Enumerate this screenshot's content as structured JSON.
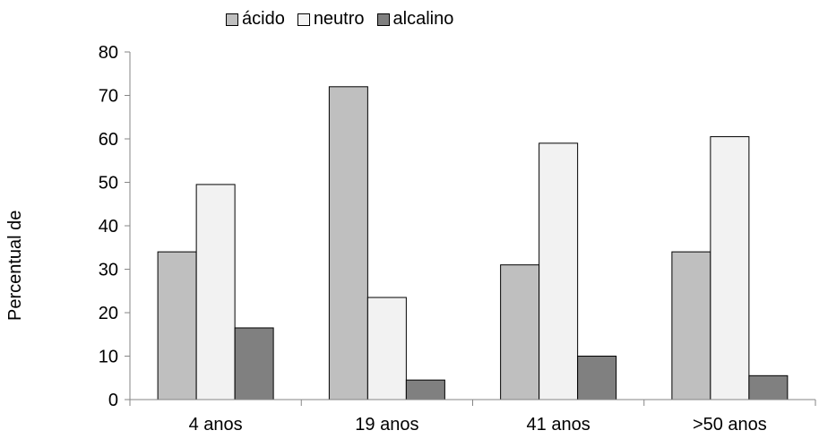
{
  "chart_data": {
    "type": "bar",
    "categories": [
      "4 anos",
      "19 anos",
      "41 anos",
      ">50 anos"
    ],
    "series": [
      {
        "name": "ácido",
        "values": [
          34,
          72,
          31,
          34
        ],
        "color": "#bfbfbf"
      },
      {
        "name": "neutro",
        "values": [
          49.5,
          23.5,
          59,
          60.5
        ],
        "color": "#f2f2f2"
      },
      {
        "name": "alcalino",
        "values": [
          16.5,
          4.5,
          10,
          5.5
        ],
        "color": "#808080"
      }
    ],
    "title": "",
    "xlabel": "",
    "ylabel": "Percentual de",
    "ylim": [
      0,
      80
    ],
    "yticks": [
      "0",
      "10",
      "20",
      "30",
      "40",
      "50",
      "60",
      "70",
      "80"
    ],
    "legend_position": "top",
    "grid": false
  }
}
